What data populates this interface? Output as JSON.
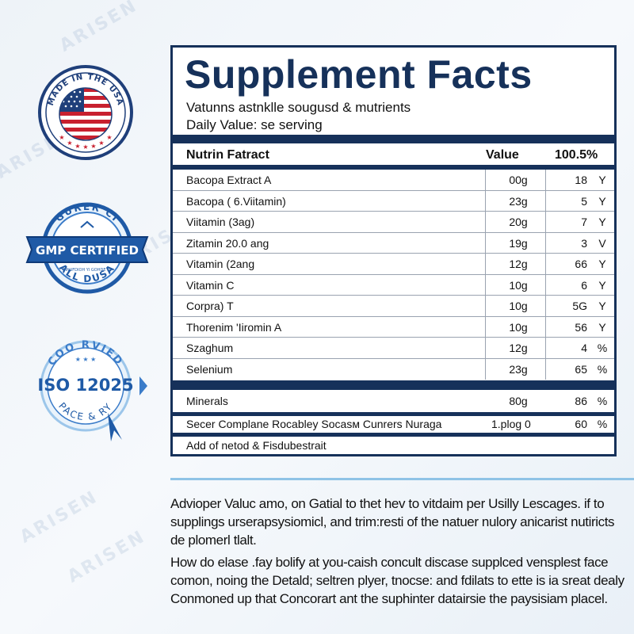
{
  "watermark": "ARISEN",
  "badges": {
    "usa": {
      "top_text": "MADE IN THE USA"
    },
    "gmp": {
      "top_text": "GURER CI",
      "main_text": "GMP CERTIFIED",
      "bottom_text": "ALL DUSA",
      "small_text": "MNUFDIOH YI GOHDE DI"
    },
    "iso": {
      "top_text": "COO RVIED",
      "main_text": "ISO 12025",
      "bottom_text": "PACE & RY"
    }
  },
  "facts": {
    "title": "Supplement Facts",
    "subtitle1": "Vatunns astnklle sougusd & mutrients",
    "subtitle2": "Daily Value: se serving",
    "header": {
      "name": "Nutrin Fatract",
      "value": "Value",
      "pct": "100.5%"
    },
    "rows": [
      {
        "name": "Bacopa Extract A",
        "value": "00g",
        "pct": "18",
        "unit": "Y"
      },
      {
        "name": "Bacopa ( 6.Viitamin)",
        "value": "23g",
        "pct": "5",
        "unit": "Y"
      },
      {
        "name": "Viitamin (3ag)",
        "value": "20g",
        "pct": "7",
        "unit": "Y"
      },
      {
        "name": "Zitamin 20.0 ang",
        "value": "19g",
        "pct": "3",
        "unit": "V"
      },
      {
        "name": "Vitamin (2ang",
        "value": "12g",
        "pct": "66",
        "unit": "Y"
      },
      {
        "name": "Vitamin C",
        "value": "10g",
        "pct": "6",
        "unit": "Y"
      },
      {
        "name": "Corpra) T",
        "value": "10g",
        "pct": "5G",
        "unit": "Y"
      },
      {
        "name": "Thorenim 'Iiromin A",
        "value": "10g",
        "pct": "56",
        "unit": "Y"
      },
      {
        "name": "Szaghum",
        "value": "12g",
        "pct": "4",
        "unit": "%"
      },
      {
        "name": "Selenium",
        "value": "23g",
        "pct": "65",
        "unit": "%"
      }
    ],
    "minerals": {
      "name": "Minerals",
      "value": "80g",
      "pct": "86",
      "unit": "%"
    },
    "secer": {
      "name": "Secer Complane Rocabley Socasм Cunrers Nuraga",
      "value": "1.plog 0",
      "pct": "60",
      "unit": "%"
    },
    "footnote": "Add of netod & Fisdubestrait"
  },
  "paragraphs": [
    "Advioper Valuc amo, on Gatial to thet hev to vitdaim per Usilly Lescages. if to supplings urserapsysiomicl, and trim:resti of the natuer nulory anicarist nutiricts de plomerl tlalt.",
    "How do elase .fay bolify at you-caish concult discase supplced vensplest face comon, noing the Detald; seltren plyer, tnocse: and fdilats to ette is ia sreat dealy Conmoned up that Concorart ant the suphinter datairsie the paysisiam placel."
  ],
  "colors": {
    "navy": "#16315a",
    "divider": "#8fc3e6",
    "flag_red": "#c8202f",
    "badge_blue": "#1f5aa6"
  }
}
